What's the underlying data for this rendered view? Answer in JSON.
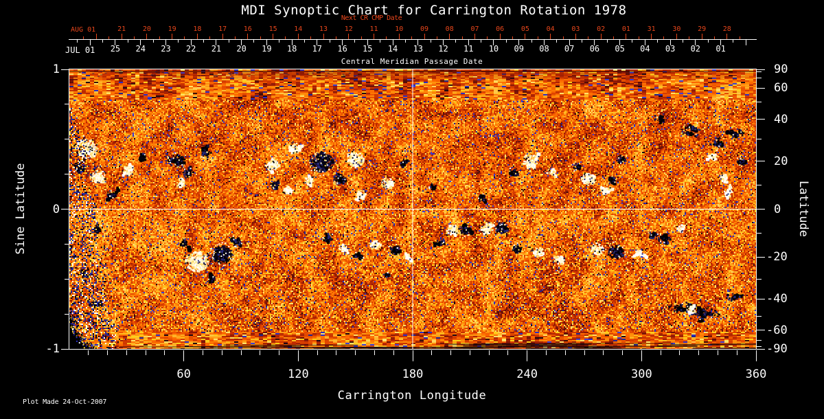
{
  "title": "MDI Synoptic Chart for Carrington Rotation 1978",
  "footer": "Plot Made 24-Oct-2007",
  "colors": {
    "background": "#000000",
    "foreground": "#ffffff",
    "accent_red": "#e8461b"
  },
  "date_axis": {
    "next_cr_label": "Next CR CMP Date",
    "cmp_label": "Central Meridian Passage Date",
    "red_month": "AUG 01",
    "white_month": "JUL 01",
    "red_ticks": [
      [
        "21",
        0.077
      ],
      [
        "20",
        0.1137
      ],
      [
        "19",
        0.1503
      ],
      [
        "18",
        0.187
      ],
      [
        "17",
        0.2237
      ],
      [
        "16",
        0.2603
      ],
      [
        "15",
        0.297
      ],
      [
        "14",
        0.3336
      ],
      [
        "13",
        0.3703
      ],
      [
        "12",
        0.407
      ],
      [
        "11",
        0.4436
      ],
      [
        "10",
        0.4803
      ],
      [
        "09",
        0.517
      ],
      [
        "08",
        0.5536
      ],
      [
        "07",
        0.5903
      ],
      [
        "06",
        0.6269
      ],
      [
        "05",
        0.6636
      ],
      [
        "04",
        0.7003
      ],
      [
        "03",
        0.7369
      ],
      [
        "02",
        0.7736
      ],
      [
        "01",
        0.8103
      ],
      [
        "31",
        0.8469
      ],
      [
        "30",
        0.8836
      ],
      [
        "29",
        0.9203
      ],
      [
        "28",
        0.9569
      ]
    ],
    "white_ticks": [
      [
        "25",
        0.0678
      ],
      [
        "24",
        0.1045
      ],
      [
        "23",
        0.1412
      ],
      [
        "22",
        0.1778
      ],
      [
        "21",
        0.2145
      ],
      [
        "20",
        0.2511
      ],
      [
        "19",
        0.2878
      ],
      [
        "18",
        0.3245
      ],
      [
        "17",
        0.3611
      ],
      [
        "16",
        0.3978
      ],
      [
        "15",
        0.4344
      ],
      [
        "14",
        0.4711
      ],
      [
        "13",
        0.5078
      ],
      [
        "12",
        0.5444
      ],
      [
        "11",
        0.5811
      ],
      [
        "10",
        0.6177
      ],
      [
        "09",
        0.6544
      ],
      [
        "08",
        0.6911
      ],
      [
        "07",
        0.7277
      ],
      [
        "06",
        0.7644
      ],
      [
        "05",
        0.801
      ],
      [
        "04",
        0.8377
      ],
      [
        "03",
        0.8744
      ],
      [
        "02",
        0.911
      ],
      [
        "01",
        0.9477
      ]
    ]
  },
  "left_axis": {
    "label": "Sine Latitude",
    "major": [
      [
        "1",
        1
      ],
      [
        "0",
        0
      ],
      [
        "-1",
        -1
      ]
    ],
    "minor": [
      0.75,
      0.5,
      0.25,
      -0.25,
      -0.5,
      -0.75
    ]
  },
  "right_axis": {
    "label": "Latitude",
    "major": [
      [
        "90",
        90
      ],
      [
        "60",
        60
      ],
      [
        "40",
        40
      ],
      [
        "20",
        20
      ],
      [
        "0",
        0
      ],
      [
        "-20",
        -20
      ],
      [
        "-40",
        -40
      ],
      [
        "-60",
        -60
      ],
      [
        "-90",
        -90
      ]
    ],
    "minor": [
      80,
      70,
      50,
      30,
      10,
      -10,
      -30,
      -50,
      -70,
      -80
    ]
  },
  "bottom_axis": {
    "label": "Carrington Longitude",
    "major": [
      [
        "60",
        60
      ],
      [
        "120",
        120
      ],
      [
        "180",
        180
      ],
      [
        "240",
        240
      ],
      [
        "300",
        300
      ],
      [
        "360",
        360
      ]
    ],
    "minor_step_deg": 10
  },
  "chart_data": {
    "type": "heatmap",
    "title": "MDI Synoptic Chart for Carrington Rotation 1978",
    "x_axis": {
      "label": "Carrington Longitude",
      "range": [
        0,
        360
      ],
      "major_ticks": [
        60,
        120,
        180,
        240,
        300,
        360
      ]
    },
    "y_axis": {
      "label": "Sine Latitude",
      "range": [
        -1,
        1
      ],
      "major_ticks": [
        1,
        0,
        -1
      ]
    },
    "y2_axis": {
      "label": "Latitude",
      "major_ticks": [
        90,
        60,
        40,
        20,
        0,
        -20,
        -40,
        -60,
        -90
      ]
    },
    "colormap": "solar magnetogram: orange-red noise background, negative polarity = black/navy blobs, positive polarity = white/yellow blobs",
    "crosshair": {
      "longitude_deg": 180,
      "sine_latitude": 0
    },
    "palette": {
      "background_ramp": [
        "#500c08",
        "#8c1808",
        "#c22c00",
        "#e24800",
        "#fc6600",
        "#ff8c08",
        "#ffb428",
        "#ffd860"
      ],
      "positive": [
        "#ffffff",
        "#fff6c8",
        "#ffe070"
      ],
      "negative": [
        "#000000",
        "#05030e",
        "#151043",
        "#262a7a"
      ],
      "speckle_blue": [
        "#2a2ec6",
        "#1e2390",
        "#3a3fd8"
      ],
      "speckle_yellow": [
        "#ffd018",
        "#ffbf1e",
        "#ffe368"
      ]
    },
    "active_regions": [
      [
        9,
        0.44,
        16,
        1,
        1.3,
        1
      ],
      [
        14.4,
        0.24,
        11,
        1,
        1,
        1
      ],
      [
        4.7,
        0.3,
        8,
        -1,
        0.8,
        1
      ],
      [
        21.6,
        0.11,
        7,
        -1,
        0.8,
        1
      ],
      [
        30.6,
        0.28,
        8,
        1,
        0.9,
        1
      ],
      [
        37.8,
        0.38,
        6,
        -1,
        0.6,
        1
      ],
      [
        55.8,
        0.35,
        11,
        -1,
        1.1,
        1
      ],
      [
        61.9,
        0.26,
        8,
        -1,
        0.9,
        1
      ],
      [
        58.3,
        0.19,
        5,
        1,
        0.9,
        1
      ],
      [
        71.3,
        0.4,
        7,
        -1,
        0.8,
        1
      ],
      [
        106.2,
        0.32,
        10,
        1,
        1.1,
        1
      ],
      [
        107.3,
        0.18,
        7,
        -1,
        1,
        1
      ],
      [
        114.5,
        0.14,
        7,
        1,
        0.9,
        1
      ],
      [
        118.1,
        0.44,
        9,
        1,
        1,
        1
      ],
      [
        125.3,
        0.21,
        7,
        1,
        0.9,
        1
      ],
      [
        131.8,
        0.34,
        17,
        -1,
        1.4,
        1
      ],
      [
        141.1,
        0.22,
        9,
        -1,
        1.1,
        1
      ],
      [
        149.4,
        0.36,
        13,
        1,
        1.4,
        1
      ],
      [
        152.6,
        0.11,
        7,
        1,
        0.9,
        1
      ],
      [
        166.3,
        0.19,
        9,
        1,
        1,
        1
      ],
      [
        174.6,
        0.33,
        6,
        -1,
        0.6,
        1
      ],
      [
        190,
        0.17,
        5,
        -1,
        0.7,
        1
      ],
      [
        216,
        0.08,
        6,
        -1,
        0.7,
        1
      ],
      [
        241.2,
        0.35,
        11,
        1,
        1.2,
        1
      ],
      [
        232.2,
        0.27,
        6,
        -1,
        0.8,
        1
      ],
      [
        252,
        0.27,
        6,
        1,
        0.8,
        1
      ],
      [
        265.7,
        0.31,
        6,
        -1,
        0.8,
        1
      ],
      [
        271.8,
        0.22,
        11,
        1,
        1.2,
        1
      ],
      [
        283.7,
        0.21,
        6,
        -1,
        0.9,
        1
      ],
      [
        288.7,
        0.36,
        8,
        -1,
        0.6,
        1
      ],
      [
        280.8,
        0.13,
        7,
        1,
        0.9,
        1
      ],
      [
        325.8,
        0.57,
        11,
        -1,
        0.55,
        1.4
      ],
      [
        339.1,
        0.48,
        9,
        -1,
        0.6,
        1.2
      ],
      [
        349.2,
        0.55,
        9,
        -1,
        0.6,
        1.2
      ],
      [
        352.1,
        0.34,
        7,
        -1,
        0.7,
        1
      ],
      [
        308.9,
        0.66,
        6,
        -1,
        0.5,
        1.3
      ],
      [
        336.6,
        0.39,
        7,
        1,
        0.6,
        1
      ],
      [
        342.7,
        0.23,
        6,
        1,
        0.7,
        1
      ],
      [
        344.9,
        0.12,
        6,
        1,
        0.7,
        1
      ],
      [
        66.6,
        -0.37,
        17,
        1,
        1.5,
        1
      ],
      [
        79.9,
        -0.32,
        15,
        -1,
        1.5,
        1
      ],
      [
        87.1,
        -0.23,
        8,
        -1,
        0.8,
        1
      ],
      [
        59.4,
        -0.23,
        6,
        -1,
        0.6,
        1
      ],
      [
        73.8,
        -0.49,
        6,
        -1,
        0.6,
        1
      ],
      [
        135.4,
        -0.19,
        7,
        -1,
        0.8,
        1
      ],
      [
        142.9,
        -0.27,
        6,
        1,
        0.8,
        1
      ],
      [
        151.2,
        -0.33,
        6,
        -1,
        0.7,
        1
      ],
      [
        160.2,
        -0.25,
        8,
        1,
        0.9,
        1
      ],
      [
        169.9,
        -0.28,
        8,
        -1,
        0.8,
        1
      ],
      [
        177.1,
        -0.33,
        5,
        1,
        0.8,
        1
      ],
      [
        165.6,
        -0.46,
        5,
        -1,
        0.5,
        1
      ],
      [
        194.4,
        -0.22,
        5,
        -1,
        0.7,
        1
      ],
      [
        200.5,
        -0.14,
        9,
        1,
        1.1,
        1
      ],
      [
        206.6,
        -0.14,
        8,
        -1,
        1.1,
        1
      ],
      [
        218.9,
        -0.13,
        10,
        1,
        1.2,
        1
      ],
      [
        226.1,
        -0.13,
        10,
        -1,
        1.2,
        1
      ],
      [
        234.7,
        -0.28,
        7,
        -1,
        0.8,
        1
      ],
      [
        245.5,
        -0.3,
        8,
        1,
        0.9,
        1
      ],
      [
        256.3,
        -0.36,
        7,
        1,
        0.8,
        1
      ],
      [
        276.5,
        -0.28,
        10,
        1,
        1.2,
        1
      ],
      [
        286.2,
        -0.3,
        12,
        -1,
        1.2,
        1
      ],
      [
        298.1,
        -0.31,
        6,
        1,
        0.8,
        1
      ],
      [
        304.9,
        -0.18,
        6,
        -1,
        0.7,
        1
      ],
      [
        311.4,
        -0.21,
        9,
        -1,
        0.8,
        1
      ],
      [
        319.7,
        -0.13,
        5,
        1,
        0.7,
        1
      ],
      [
        320.4,
        -0.7,
        10,
        -1,
        0.7,
        2.2
      ],
      [
        331.9,
        -0.74,
        11,
        -1,
        0.7,
        2.2
      ],
      [
        326.2,
        -0.72,
        4,
        1,
        0.6,
        1.5
      ],
      [
        346.3,
        -0.62,
        7,
        -1,
        0.6,
        2
      ],
      [
        14.4,
        -0.13,
        8,
        -1,
        0.5,
        1
      ],
      [
        7.2,
        -0.45,
        9,
        -1,
        0.5,
        1
      ],
      [
        12.6,
        -0.67,
        8,
        -1,
        0.5,
        1
      ]
    ],
    "artifacts": {
      "black_wedge_bottom_left": true,
      "noisy_speckled_left_margin_band": true,
      "horizontal_streaks_top_and_bottom_rows": true
    }
  }
}
